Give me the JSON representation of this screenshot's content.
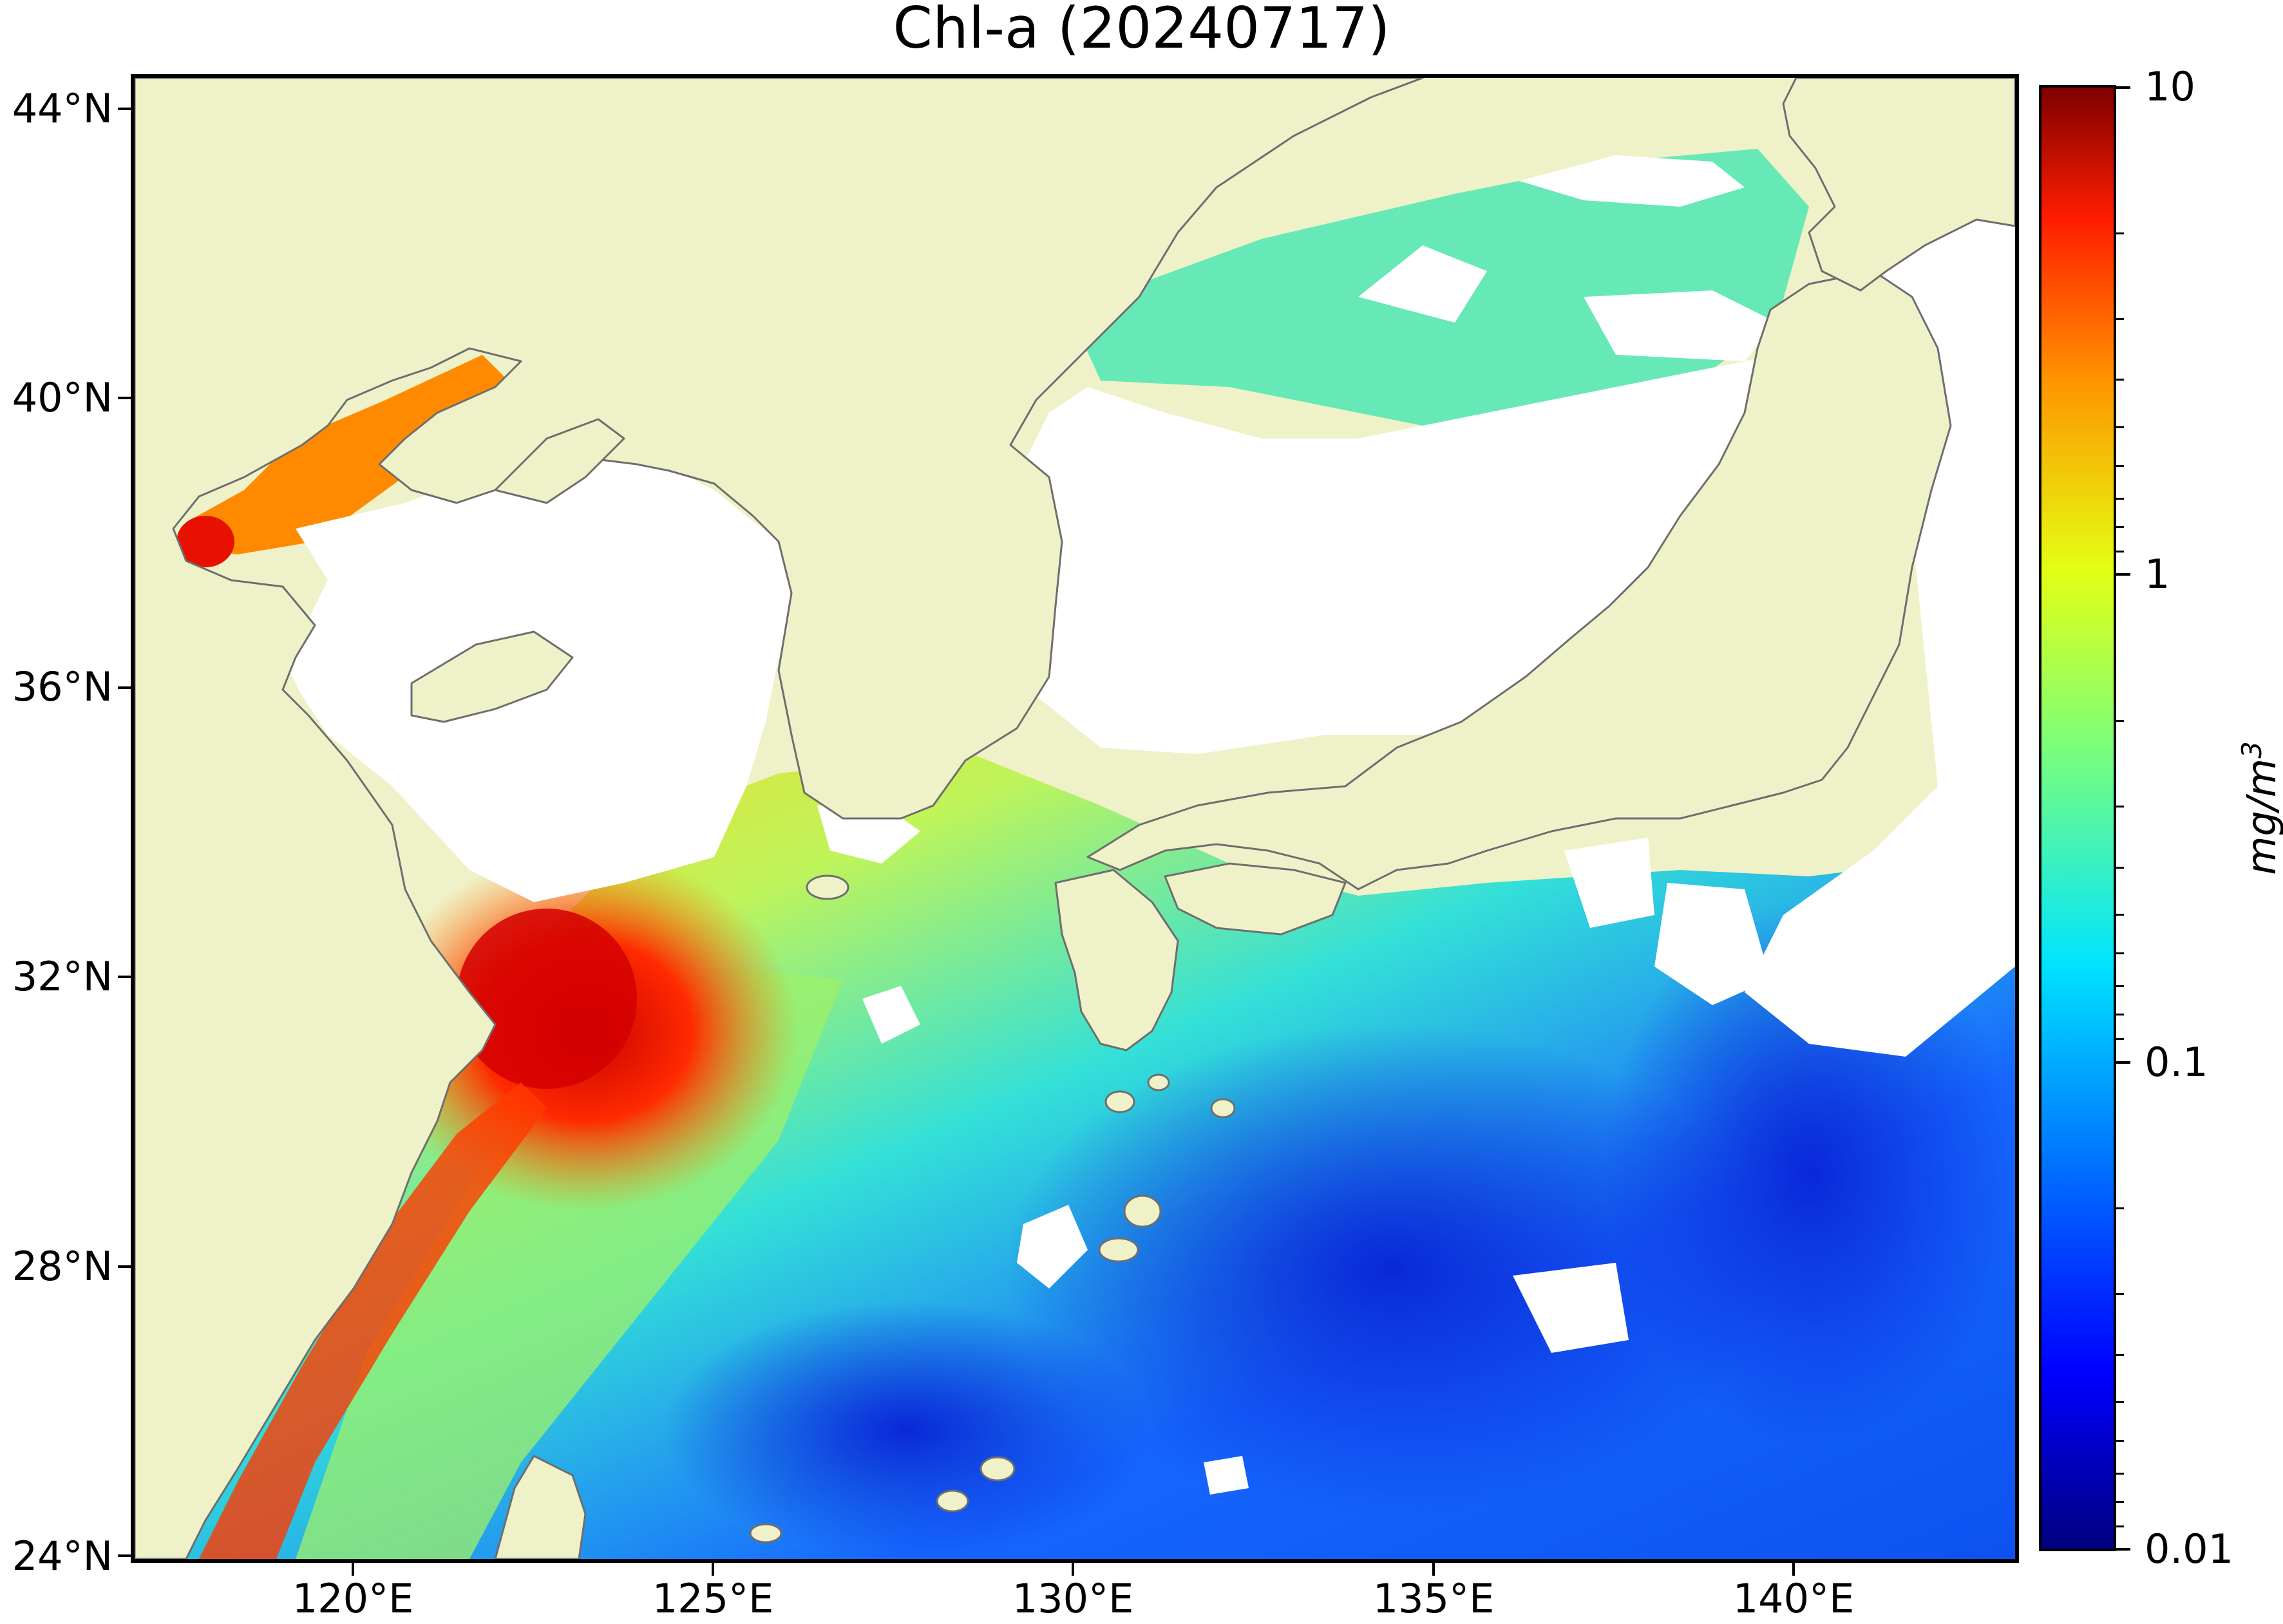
{
  "title": "Chl-a (20240717)",
  "map": {
    "lat_labels": [
      "44°N",
      "40°N",
      "36°N",
      "32°N",
      "28°N",
      "24°N"
    ],
    "lon_labels": [
      "120°E",
      "125°E",
      "130°E",
      "135°E",
      "140°E"
    ],
    "land_color": "#eff2c8",
    "no_data_color": "#ffffff",
    "coast_color": "#6e6e6e"
  },
  "colorbar": {
    "tick_labels": [
      "10",
      "1",
      "0.1",
      "0.01"
    ],
    "unit_base": "mg/m",
    "unit_exp": "3",
    "scale": "log",
    "range": [
      0.01,
      10
    ],
    "colormap": "jet"
  }
}
